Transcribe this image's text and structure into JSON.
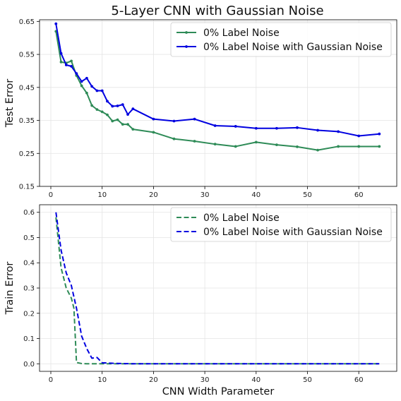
{
  "title": "5-Layer CNN with Gaussian Noise",
  "colors": {
    "green": "#2e8b57",
    "blue": "#0000e0"
  },
  "chart_data": [
    {
      "type": "line",
      "title": "5-Layer CNN with Gaussian Noise",
      "xlabel": "",
      "ylabel": "Test Error",
      "xlim": [
        -2.2,
        67.4
      ],
      "ylim": [
        0.15,
        0.655
      ],
      "xticks": [
        0,
        10,
        20,
        30,
        40,
        50,
        60
      ],
      "yticks": [
        0.15,
        0.25,
        0.35,
        0.45,
        0.55,
        0.65
      ],
      "ytick_labels": [
        "0.15",
        "0.25",
        "0.35",
        "0.45",
        "0.55",
        "0.65"
      ],
      "grid": true,
      "legend": "top-right",
      "series": [
        {
          "name": "0%  Label Noise",
          "color": "#2e8b57",
          "style": "solid",
          "marker": true,
          "x": [
            1,
            2,
            3,
            4,
            5,
            6,
            7,
            8,
            9,
            10,
            11,
            12,
            13,
            14,
            15,
            16,
            20,
            24,
            28,
            32,
            36,
            40,
            44,
            48,
            52,
            56,
            60,
            64
          ],
          "y": [
            0.62,
            0.527,
            0.524,
            0.53,
            0.486,
            0.455,
            0.433,
            0.395,
            0.383,
            0.376,
            0.367,
            0.348,
            0.352,
            0.338,
            0.338,
            0.323,
            0.314,
            0.294,
            0.287,
            0.278,
            0.271,
            0.284,
            0.276,
            0.27,
            0.26,
            0.271,
            0.271,
            0.271
          ]
        },
        {
          "name": "0%  Label Noise with Gaussian Noise",
          "color": "#0000e0",
          "style": "solid",
          "marker": true,
          "x": [
            1,
            2,
            3,
            4,
            5,
            6,
            7,
            8,
            9,
            10,
            11,
            12,
            13,
            14,
            15,
            16,
            20,
            24,
            28,
            32,
            36,
            40,
            44,
            48,
            52,
            56,
            60,
            64
          ],
          "y": [
            0.643,
            0.553,
            0.518,
            0.514,
            0.492,
            0.468,
            0.478,
            0.453,
            0.44,
            0.44,
            0.408,
            0.393,
            0.394,
            0.398,
            0.368,
            0.385,
            0.354,
            0.348,
            0.354,
            0.334,
            0.332,
            0.326,
            0.326,
            0.328,
            0.32,
            0.316,
            0.303,
            0.309
          ]
        }
      ]
    },
    {
      "type": "line",
      "title": "",
      "xlabel": "CNN Width Parameter",
      "ylabel": "Train Error",
      "xlim": [
        -2.2,
        67.4
      ],
      "ylim": [
        -0.03,
        0.63
      ],
      "xticks": [
        0,
        10,
        20,
        30,
        40,
        50,
        60
      ],
      "yticks": [
        0.0,
        0.1,
        0.2,
        0.3,
        0.4,
        0.5,
        0.6
      ],
      "ytick_labels": [
        "0.0",
        "0.1",
        "0.2",
        "0.3",
        "0.4",
        "0.5",
        "0.6"
      ],
      "grid": true,
      "legend": "top-right",
      "series": [
        {
          "name": "0%  Label Noise",
          "color": "#2e8b57",
          "style": "dashed",
          "marker": false,
          "x": [
            1,
            2,
            3,
            4,
            4.5,
            5,
            6,
            7,
            8,
            10,
            14,
            20,
            30,
            40,
            50,
            60,
            64
          ],
          "y": [
            0.58,
            0.38,
            0.3,
            0.26,
            0.22,
            0.005,
            0.001,
            0.0,
            0.0,
            0.0,
            0.0,
            0.0,
            0.0,
            0.0,
            0.0,
            0.0,
            0.0
          ]
        },
        {
          "name": "0%  Label Noise with Gaussian Noise",
          "color": "#0000e0",
          "style": "dashed",
          "marker": false,
          "x": [
            1,
            2,
            3,
            4,
            5,
            6,
            7,
            8,
            9,
            10,
            12,
            14,
            16,
            20,
            30,
            40,
            50,
            60,
            64
          ],
          "y": [
            0.6,
            0.45,
            0.36,
            0.31,
            0.22,
            0.11,
            0.06,
            0.022,
            0.025,
            0.004,
            0.002,
            0.001,
            0.0,
            0.0,
            0.0,
            0.0,
            0.0,
            0.0,
            0.0
          ]
        }
      ]
    }
  ]
}
